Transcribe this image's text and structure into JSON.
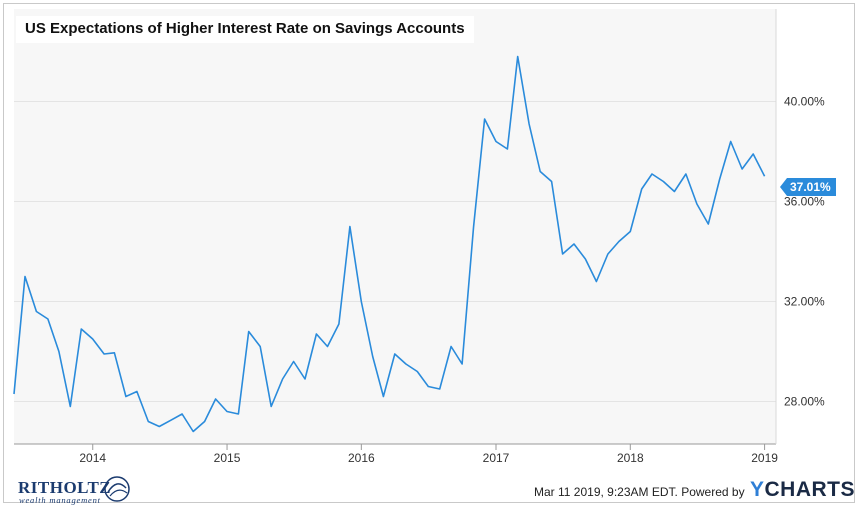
{
  "chart_data": {
    "type": "line",
    "title": "US Expectations of Higher Interest Rate on Savings Accounts",
    "xlabel": "",
    "ylabel": "",
    "x_tick_labels": [
      "2014",
      "2015",
      "2016",
      "2017",
      "2018",
      "2019"
    ],
    "y_tick_labels": [
      "28.00%",
      "32.00%",
      "36.00%",
      "40.00%"
    ],
    "y_ticks": [
      28,
      32,
      36,
      40
    ],
    "ylim": [
      26.3,
      43.7
    ],
    "xlim": [
      "2013-06-01",
      "2019-02-01"
    ],
    "grid": true,
    "line_color": "#2a8bdb",
    "last_value_label": "37.01%",
    "series": [
      {
        "points": [
          [
            "2013-06-01",
            28.3
          ],
          [
            "2013-07-01",
            33.0
          ],
          [
            "2013-08-01",
            31.6
          ],
          [
            "2013-09-01",
            31.3
          ],
          [
            "2013-10-01",
            30.0
          ],
          [
            "2013-11-01",
            27.8
          ],
          [
            "2013-12-01",
            30.9
          ],
          [
            "2014-01-01",
            30.5
          ],
          [
            "2014-02-01",
            29.9
          ],
          [
            "2014-03-01",
            29.95
          ],
          [
            "2014-04-01",
            28.2
          ],
          [
            "2014-05-01",
            28.4
          ],
          [
            "2014-06-01",
            27.2
          ],
          [
            "2014-07-01",
            27.0
          ],
          [
            "2014-08-01",
            27.25
          ],
          [
            "2014-09-01",
            27.5
          ],
          [
            "2014-10-01",
            26.8
          ],
          [
            "2014-11-01",
            27.2
          ],
          [
            "2014-12-01",
            28.1
          ],
          [
            "2015-01-01",
            27.6
          ],
          [
            "2015-02-01",
            27.5
          ],
          [
            "2015-03-01",
            30.8
          ],
          [
            "2015-04-01",
            30.2
          ],
          [
            "2015-05-01",
            27.8
          ],
          [
            "2015-06-01",
            28.9
          ],
          [
            "2015-07-01",
            29.6
          ],
          [
            "2015-08-01",
            28.9
          ],
          [
            "2015-09-01",
            30.7
          ],
          [
            "2015-10-01",
            30.2
          ],
          [
            "2015-11-01",
            31.1
          ],
          [
            "2015-12-01",
            35.0
          ],
          [
            "2016-01-01",
            32.0
          ],
          [
            "2016-02-01",
            29.8
          ],
          [
            "2016-03-01",
            28.2
          ],
          [
            "2016-04-01",
            29.9
          ],
          [
            "2016-05-01",
            29.5
          ],
          [
            "2016-06-01",
            29.2
          ],
          [
            "2016-07-01",
            28.6
          ],
          [
            "2016-08-01",
            28.5
          ],
          [
            "2016-09-01",
            30.2
          ],
          [
            "2016-10-01",
            29.5
          ],
          [
            "2016-11-01",
            35.0
          ],
          [
            "2016-12-01",
            39.3
          ],
          [
            "2017-01-01",
            38.4
          ],
          [
            "2017-02-01",
            38.1
          ],
          [
            "2017-03-01",
            41.8
          ],
          [
            "2017-04-01",
            39.1
          ],
          [
            "2017-05-01",
            37.2
          ],
          [
            "2017-06-01",
            36.8
          ],
          [
            "2017-07-01",
            33.9
          ],
          [
            "2017-08-01",
            34.3
          ],
          [
            "2017-09-01",
            33.7
          ],
          [
            "2017-10-01",
            32.8
          ],
          [
            "2017-11-01",
            33.9
          ],
          [
            "2017-12-01",
            34.4
          ],
          [
            "2018-01-01",
            34.8
          ],
          [
            "2018-02-01",
            36.5
          ],
          [
            "2018-03-01",
            37.1
          ],
          [
            "2018-04-01",
            36.8
          ],
          [
            "2018-05-01",
            36.4
          ],
          [
            "2018-06-01",
            37.1
          ],
          [
            "2018-07-01",
            35.9
          ],
          [
            "2018-08-01",
            35.1
          ],
          [
            "2018-09-01",
            36.9
          ],
          [
            "2018-10-01",
            38.4
          ],
          [
            "2018-11-01",
            37.3
          ],
          [
            "2018-12-01",
            37.9
          ],
          [
            "2019-01-01",
            37.01
          ]
        ]
      }
    ]
  },
  "footer": {
    "timestamp": "Mar 11 2019, 9:23AM EDT.",
    "powered_by": "Powered by",
    "brand_y": "Y",
    "brand_rest": "CHARTS"
  },
  "logo": {
    "name": "RITHOLTZ",
    "subtitle": "wealth management"
  }
}
